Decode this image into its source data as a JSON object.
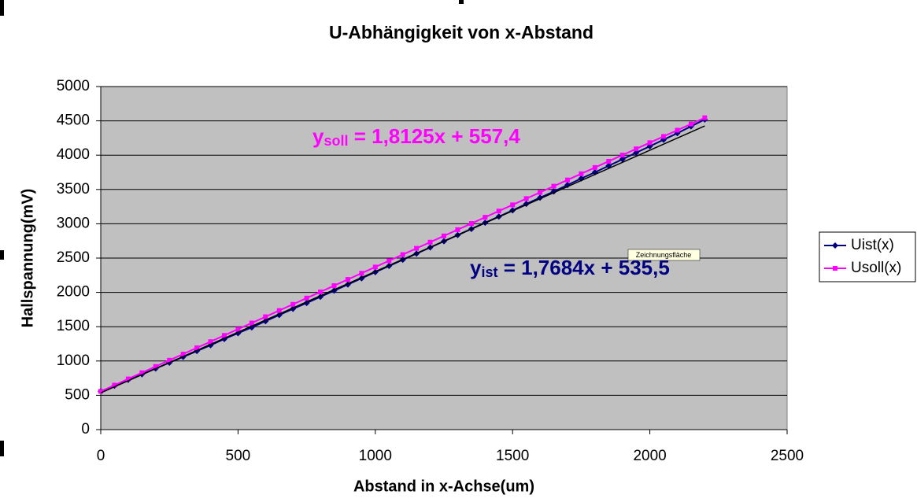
{
  "chart_data": {
    "type": "line",
    "title": "U-Abhängigkeit von x-Abstand",
    "x_label": "Abstand in x-Achse(um)",
    "y_label": "Hallspannung(mV)",
    "tooltip": "Zeichnungsfläche",
    "xlim": [
      0,
      2500
    ],
    "xticks": [
      0,
      500,
      1000,
      1500,
      2000,
      2500
    ],
    "ylim": [
      0,
      5000
    ],
    "yticks": [
      0,
      500,
      1000,
      1500,
      2000,
      2500,
      3000,
      3500,
      4000,
      4500,
      5000
    ],
    "grid": true,
    "plot_background": "#c0c0c0",
    "legend": "right",
    "x": [
      0,
      50,
      100,
      150,
      200,
      250,
      300,
      350,
      400,
      450,
      500,
      550,
      600,
      650,
      700,
      750,
      800,
      850,
      900,
      950,
      1000,
      1050,
      1100,
      1150,
      1200,
      1250,
      1300,
      1350,
      1400,
      1450,
      1500,
      1550,
      1600,
      1650,
      1700,
      1750,
      1800,
      1850,
      1900,
      1950,
      2000,
      2050,
      2100,
      2150,
      2200
    ],
    "series": [
      {
        "name": "Uist(x)",
        "color": "#000080",
        "marker": "diamond",
        "values": [
          560,
          640,
          725,
          805,
          890,
          975,
          1060,
          1145,
          1230,
          1320,
          1405,
          1490,
          1580,
          1670,
          1760,
          1845,
          1935,
          2025,
          2115,
          2205,
          2295,
          2385,
          2475,
          2565,
          2655,
          2745,
          2835,
          2925,
          3015,
          3105,
          3195,
          3290,
          3380,
          3470,
          3565,
          3660,
          3750,
          3845,
          3940,
          4035,
          4130,
          4225,
          4320,
          4420,
          4520
        ],
        "trendline": {
          "slope": 1.7684,
          "intercept": 535.5,
          "color": "#000000",
          "label": [
            "y",
            "ist",
            " = 1,7684x + 535,5"
          ]
        }
      },
      {
        "name": "Usoll(x)",
        "color": "#ff00ff",
        "marker": "square",
        "values": [
          557,
          648,
          739,
          829,
          920,
          1011,
          1101,
          1192,
          1282,
          1373,
          1464,
          1554,
          1645,
          1736,
          1826,
          1917,
          2007,
          2098,
          2189,
          2279,
          2370,
          2461,
          2551,
          2642,
          2732,
          2823,
          2914,
          3004,
          3095,
          3186,
          3276,
          3367,
          3457,
          3548,
          3639,
          3729,
          3820,
          3911,
          4001,
          4092,
          4182,
          4273,
          4364,
          4454,
          4545
        ],
        "trendline": {
          "slope": 1.8125,
          "intercept": 557.4,
          "color": "#ff00ff",
          "label": [
            "y",
            "soll",
            " = 1,8125x + 557,4"
          ]
        }
      }
    ]
  }
}
